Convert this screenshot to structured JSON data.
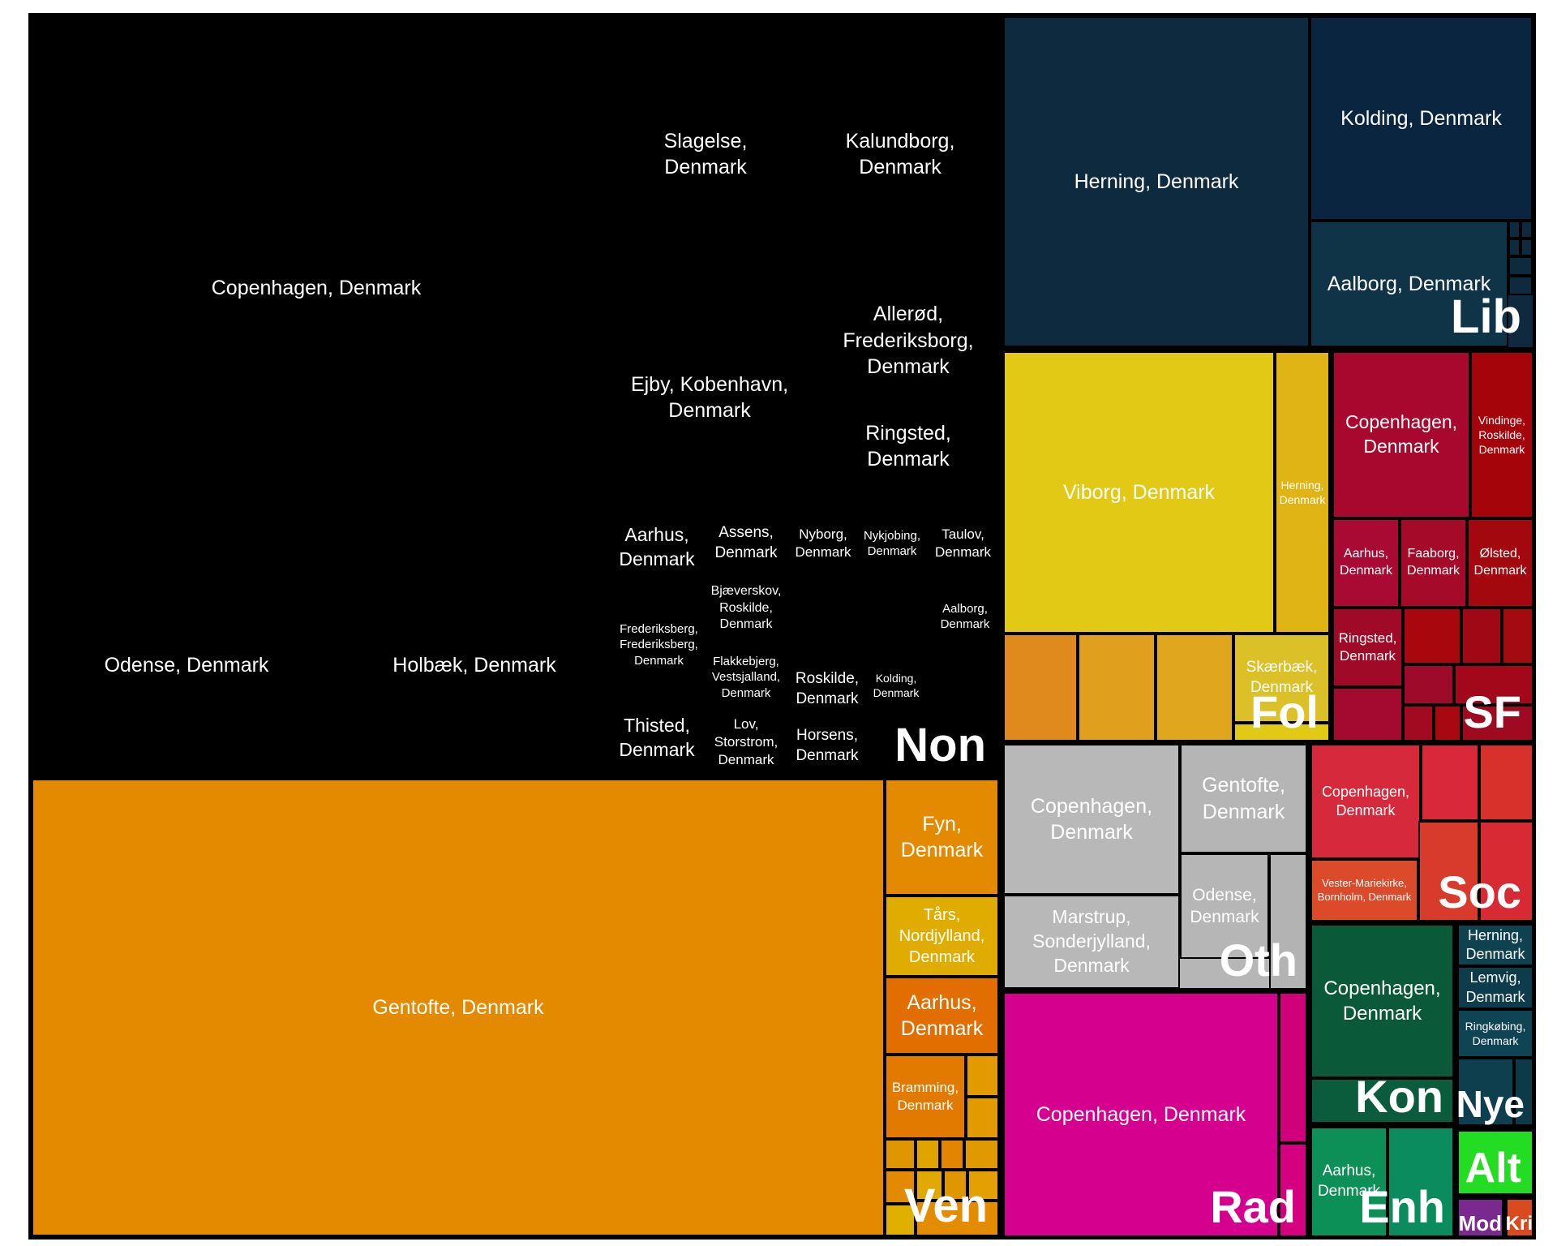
{
  "chart_data": {
    "type": "treemap",
    "groups": [
      {
        "party": "Non",
        "color": "#000000",
        "tiles": [
          {
            "label": "Copenhagen, Denmark"
          },
          {
            "label": "Odense, Denmark"
          },
          {
            "label": "Holbæk, Denmark"
          },
          {
            "label": "Slagelse, Denmark"
          },
          {
            "label": "Kalundborg, Denmark"
          },
          {
            "label": "Ejby, Kobenhavn, Denmark"
          },
          {
            "label": "Allerød, Frederiksborg, Denmark"
          },
          {
            "label": "Ringsted, Denmark"
          },
          {
            "label": "Aarhus, Denmark"
          },
          {
            "label": "Assens, Denmark"
          },
          {
            "label": "Nyborg, Denmark"
          },
          {
            "label": "Nykjobing, Denmark"
          },
          {
            "label": "Taulov, Denmark"
          },
          {
            "label": "Bjæverskov, Roskilde, Denmark"
          },
          {
            "label": "Aalborg, Denmark"
          },
          {
            "label": "Frederiksberg, Frederiksberg, Denmark"
          },
          {
            "label": "Flakkebjerg, Vestsjalland, Denmark"
          },
          {
            "label": "Roskilde, Denmark"
          },
          {
            "label": "Kolding, Denmark"
          },
          {
            "label": "Thisted, Denmark"
          },
          {
            "label": "Lov, Storstrom, Denmark"
          },
          {
            "label": "Horsens, Denmark"
          }
        ]
      },
      {
        "party": "Ven",
        "color": "#E38A00",
        "tiles": [
          {
            "label": "Gentofte, Denmark"
          },
          {
            "label": "Fyn, Denmark"
          },
          {
            "label": "Tårs, Nordjylland, Denmark"
          },
          {
            "label": "Aarhus, Denmark"
          },
          {
            "label": "Bramming, Denmark"
          }
        ]
      },
      {
        "party": "Lib",
        "color": "#0F2A3F",
        "tiles": [
          {
            "label": "Herning, Denmark"
          },
          {
            "label": "Kolding, Denmark"
          },
          {
            "label": "Aalborg, Denmark"
          }
        ]
      },
      {
        "party": "Fol",
        "color": "#E1C416",
        "tiles": [
          {
            "label": "Viborg, Denmark"
          },
          {
            "label": "Herning, Denmark"
          },
          {
            "label": "Skærbæk, Denmark"
          }
        ]
      },
      {
        "party": "SF",
        "color": "#A5082C",
        "tiles": [
          {
            "label": "Copenhagen, Denmark"
          },
          {
            "label": "Vindinge, Roskilde, Denmark"
          },
          {
            "label": "Aarhus, Denmark"
          },
          {
            "label": "Faaborg, Denmark"
          },
          {
            "label": "Ølsted, Denmark"
          },
          {
            "label": "Ringsted, Denmark"
          }
        ]
      },
      {
        "party": "Oth",
        "color": "#B6B6B6",
        "tiles": [
          {
            "label": "Copenhagen, Denmark"
          },
          {
            "label": "Gentofte, Denmark"
          },
          {
            "label": "Marstrup, Sonderjylland, Denmark"
          },
          {
            "label": "Odense, Denmark"
          }
        ]
      },
      {
        "party": "Soc",
        "color": "#D8253A",
        "tiles": [
          {
            "label": "Copenhagen, Denmark"
          },
          {
            "label": "Vester-Mariekirke, Bornholm, Denmark"
          }
        ]
      },
      {
        "party": "Rad",
        "color": "#D6008E",
        "tiles": [
          {
            "label": "Copenhagen, Denmark"
          }
        ]
      },
      {
        "party": "Kon",
        "color": "#0A5A3A",
        "tiles": [
          {
            "label": "Copenhagen, Denmark"
          }
        ]
      },
      {
        "party": "Nye",
        "color": "#0E3F4E",
        "tiles": [
          {
            "label": "Herning, Denmark"
          },
          {
            "label": "Lemvig, Denmark"
          },
          {
            "label": "Ringkøbing, Denmark"
          }
        ]
      },
      {
        "party": "Enh",
        "color": "#0C9058",
        "tiles": [
          {
            "label": "Aarhus, Denmark"
          }
        ]
      },
      {
        "party": "Alt",
        "color": "#22DD22",
        "tiles": []
      },
      {
        "party": "Mod",
        "color": "#7A2A8E",
        "tiles": []
      },
      {
        "party": "Kri",
        "color": "#D94A1E",
        "tiles": []
      }
    ]
  }
}
